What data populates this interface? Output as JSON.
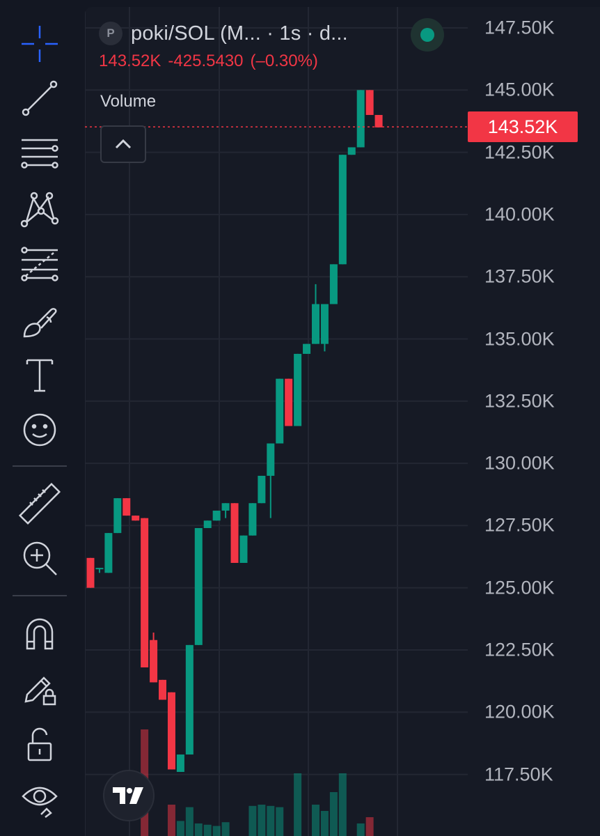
{
  "symbol": {
    "badge_letter": "P",
    "title": "poki/SOL (M... · 1s · d...",
    "last_price": "143.52K",
    "change": "-425.5430",
    "change_pct": "(–0.30%)"
  },
  "indicator": {
    "volume_label": "Volume"
  },
  "price_axis": {
    "labels": [
      "147.50K",
      "145.00K",
      "142.50K",
      "140.00K",
      "137.50K",
      "135.00K",
      "132.50K",
      "130.00K",
      "127.50K",
      "125.00K",
      "122.50K",
      "120.00K",
      "117.50K"
    ],
    "current_price_label": "143.52K"
  },
  "colors": {
    "up": "#089981",
    "down": "#f23645",
    "background": "#131722",
    "chart_background": "#161a25",
    "text": "#d1d4dc",
    "axis_text": "#b2b5be"
  },
  "toolbar_icons": [
    "crosshair-icon",
    "trend-line-icon",
    "horizontal-lines-icon",
    "pattern-icon",
    "fib-icon",
    "brush-icon",
    "text-icon",
    "emoji-icon",
    "ruler-icon",
    "zoom-in-icon",
    "magnet-icon",
    "lock-drawing-icon",
    "lock-icon",
    "eye-icon"
  ],
  "chart_data": {
    "type": "candlestick",
    "unit": "K",
    "ylim": [
      116.5,
      148.5
    ],
    "current_price": 143.52,
    "candles": [
      {
        "o": 126.2,
        "h": 126.2,
        "l": 125.0,
        "c": 125.0
      },
      {
        "o": 125.8,
        "h": 125.8,
        "l": 125.6,
        "c": 125.8
      },
      {
        "o": 125.6,
        "h": 127.2,
        "l": 125.6,
        "c": 127.2
      },
      {
        "o": 127.2,
        "h": 128.6,
        "l": 127.2,
        "c": 128.6
      },
      {
        "o": 128.6,
        "h": 128.6,
        "l": 127.9,
        "c": 127.9
      },
      {
        "o": 127.9,
        "h": 127.9,
        "l": 127.7,
        "c": 127.7
      },
      {
        "o": 127.8,
        "h": 127.8,
        "l": 121.8,
        "c": 121.8
      },
      {
        "o": 122.9,
        "h": 123.2,
        "l": 121.2,
        "c": 121.2
      },
      {
        "o": 121.3,
        "h": 121.3,
        "l": 120.5,
        "c": 120.5
      },
      {
        "o": 120.8,
        "h": 120.8,
        "l": 117.7,
        "c": 117.7
      },
      {
        "o": 117.6,
        "h": 118.3,
        "l": 117.6,
        "c": 118.3
      },
      {
        "o": 118.3,
        "h": 122.7,
        "l": 118.3,
        "c": 122.7
      },
      {
        "o": 122.7,
        "h": 127.4,
        "l": 122.7,
        "c": 127.4
      },
      {
        "o": 127.4,
        "h": 127.7,
        "l": 127.4,
        "c": 127.7
      },
      {
        "o": 127.7,
        "h": 128.1,
        "l": 127.7,
        "c": 128.1
      },
      {
        "o": 128.1,
        "h": 128.4,
        "l": 127.8,
        "c": 128.4
      },
      {
        "o": 128.4,
        "h": 128.4,
        "l": 126.0,
        "c": 126.0
      },
      {
        "o": 126.0,
        "h": 127.1,
        "l": 126.0,
        "c": 127.1
      },
      {
        "o": 127.1,
        "h": 128.4,
        "l": 127.1,
        "c": 128.4
      },
      {
        "o": 128.4,
        "h": 129.5,
        "l": 128.4,
        "c": 129.5
      },
      {
        "o": 129.5,
        "h": 130.8,
        "l": 127.8,
        "c": 130.8
      },
      {
        "o": 130.8,
        "h": 133.4,
        "l": 130.8,
        "c": 133.4
      },
      {
        "o": 133.4,
        "h": 133.4,
        "l": 131.5,
        "c": 131.5
      },
      {
        "o": 131.5,
        "h": 134.4,
        "l": 131.5,
        "c": 134.4
      },
      {
        "o": 134.4,
        "h": 134.8,
        "l": 134.4,
        "c": 134.8
      },
      {
        "o": 134.8,
        "h": 137.2,
        "l": 134.8,
        "c": 136.4
      },
      {
        "o": 134.8,
        "h": 136.4,
        "l": 134.5,
        "c": 136.4
      },
      {
        "o": 136.4,
        "h": 138.0,
        "l": 136.4,
        "c": 138.0
      },
      {
        "o": 138.0,
        "h": 142.4,
        "l": 138.0,
        "c": 142.4
      },
      {
        "o": 142.4,
        "h": 142.7,
        "l": 142.4,
        "c": 142.7
      },
      {
        "o": 142.7,
        "h": 145.0,
        "l": 142.7,
        "c": 145.0
      },
      {
        "o": 145.0,
        "h": 145.0,
        "l": 144.0,
        "c": 144.0
      },
      {
        "o": 144.0,
        "h": 144.0,
        "l": 143.5,
        "c": 143.5
      }
    ],
    "volume": [
      0,
      0,
      0,
      0,
      0,
      0,
      0.85,
      0,
      0,
      0.25,
      0.12,
      0.23,
      0.1,
      0.09,
      0.08,
      0.11,
      0,
      0,
      0.24,
      0.25,
      0.24,
      0.23,
      0,
      0.5,
      0,
      0.25,
      0.2,
      0.35,
      0.5,
      0,
      0.1,
      0.15,
      0
    ]
  }
}
